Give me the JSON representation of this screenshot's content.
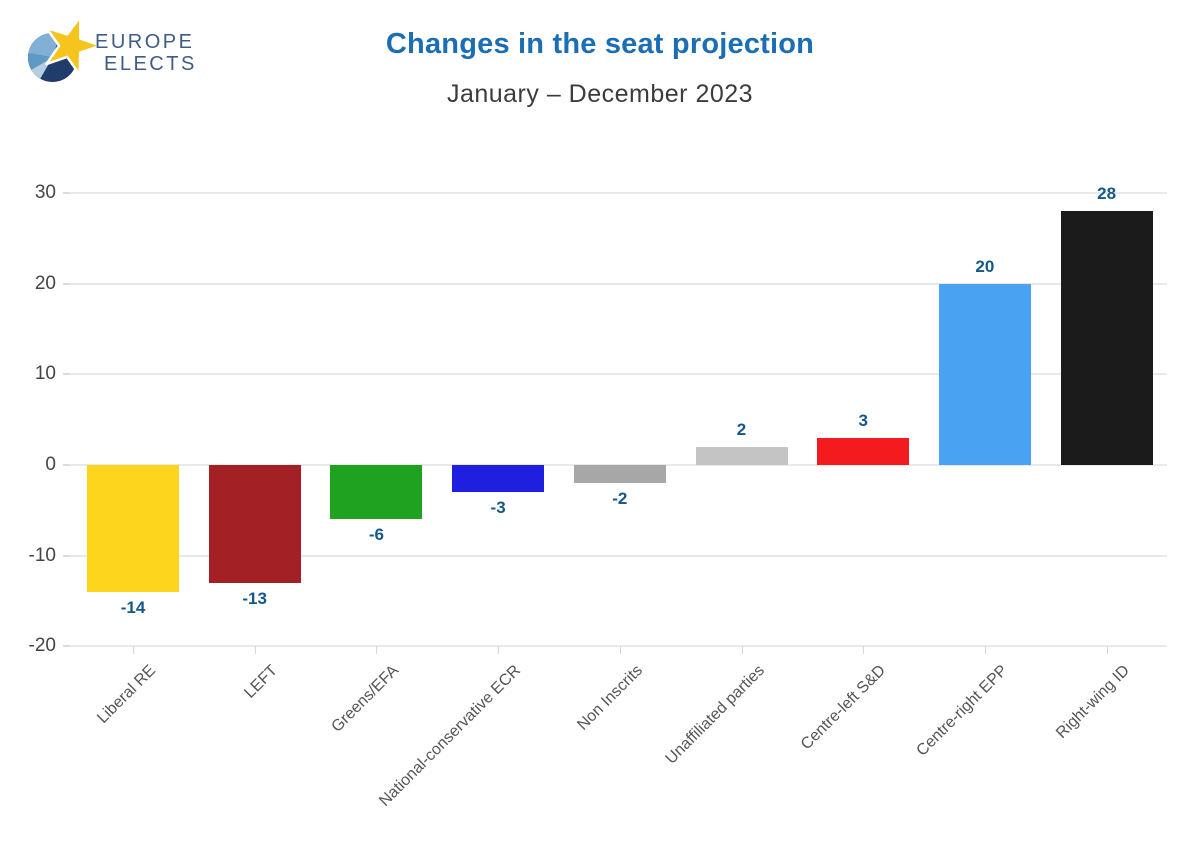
{
  "logo": {
    "line1": "EUROPE",
    "line2": "ELECTS"
  },
  "header": {
    "title_color": "#1B6EB4",
    "subtitle_color": "#3C3C3C"
  },
  "chart_data": {
    "type": "bar",
    "title": "Changes in the seat projection",
    "subtitle": "January – December 2023",
    "categories": [
      "Liberal RE",
      "LEFT",
      "Greens/EFA",
      "National-conservative ECR",
      "Non Inscrits",
      "Unaffiliated parties",
      "Centre-left S&D",
      "Centre-right EPP",
      "Right-wing ID"
    ],
    "values": [
      -14,
      -13,
      -6,
      -3,
      -2,
      2,
      3,
      20,
      28
    ],
    "bar_colors": [
      "#FCD51C",
      "#A32025",
      "#1EA220",
      "#1F1FE0",
      "#A7A7A7",
      "#C4C4C4",
      "#F31B1E",
      "#4AA2F2",
      "#1B1B1B"
    ],
    "value_labels": [
      "-14",
      "-13",
      "-6",
      "-3",
      "-2",
      "2",
      "3",
      "20",
      "28"
    ],
    "yticks": [
      30,
      20,
      10,
      0,
      -10,
      -20
    ],
    "ylim": [
      -20,
      30
    ],
    "grid": "horizontal",
    "legend": "none",
    "value_label_color": "#14588A",
    "axis_tick_color": "#454545",
    "category_label_color": "#555555",
    "gridline_color": "#E9E9E9"
  }
}
